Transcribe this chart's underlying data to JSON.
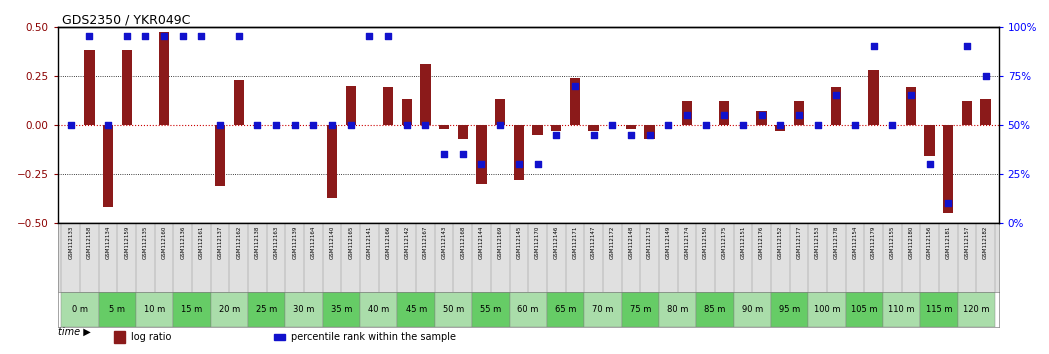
{
  "title": "GDS2350 / YKR049C",
  "samples": [
    "GSM112133",
    "GSM112158",
    "GSM112134",
    "GSM112159",
    "GSM112135",
    "GSM112160",
    "GSM112136",
    "GSM112161",
    "GSM112137",
    "GSM112162",
    "GSM112138",
    "GSM112163",
    "GSM112139",
    "GSM112164",
    "GSM112140",
    "GSM112165",
    "GSM112141",
    "GSM112166",
    "GSM112142",
    "GSM112167",
    "GSM112143",
    "GSM112168",
    "GSM112144",
    "GSM112169",
    "GSM112145",
    "GSM112170",
    "GSM112146",
    "GSM112171",
    "GSM112147",
    "GSM112172",
    "GSM112148",
    "GSM112173",
    "GSM112149",
    "GSM112174",
    "GSM112150",
    "GSM112175",
    "GSM112151",
    "GSM112176",
    "GSM112152",
    "GSM112177",
    "GSM112153",
    "GSM112178",
    "GSM112154",
    "GSM112179",
    "GSM112155",
    "GSM112180",
    "GSM112156",
    "GSM112181",
    "GSM112157",
    "GSM112182"
  ],
  "log_ratio": [
    0.0,
    0.38,
    -0.42,
    0.38,
    0.0,
    0.47,
    0.0,
    0.0,
    -0.31,
    0.23,
    0.0,
    0.0,
    0.0,
    0.0,
    -0.37,
    0.2,
    0.0,
    0.19,
    0.13,
    0.31,
    -0.02,
    -0.07,
    -0.3,
    0.13,
    -0.28,
    -0.05,
    -0.03,
    0.24,
    -0.03,
    0.0,
    -0.02,
    -0.07,
    0.0,
    0.12,
    0.0,
    0.12,
    0.0,
    0.07,
    -0.03,
    0.12,
    0.0,
    0.19,
    0.0,
    0.28,
    0.0,
    0.19,
    -0.16,
    -0.45,
    0.12,
    0.13
  ],
  "percentile": [
    50,
    95,
    50,
    95,
    95,
    95,
    95,
    95,
    50,
    95,
    50,
    50,
    50,
    50,
    50,
    50,
    95,
    95,
    50,
    50,
    35,
    35,
    30,
    50,
    30,
    30,
    45,
    70,
    45,
    50,
    45,
    45,
    50,
    55,
    50,
    55,
    50,
    55,
    50,
    55,
    50,
    65,
    50,
    90,
    50,
    65,
    30,
    10,
    90,
    75
  ],
  "time_labels": [
    "0 m",
    "5 m",
    "10 m",
    "15 m",
    "20 m",
    "25 m",
    "30 m",
    "35 m",
    "40 m",
    "45 m",
    "50 m",
    "55 m",
    "60 m",
    "65 m",
    "70 m",
    "75 m",
    "80 m",
    "85 m",
    "90 m",
    "95 m",
    "100 m",
    "105 m",
    "110 m",
    "115 m",
    "120 m"
  ],
  "time_positions": [
    0,
    2,
    4,
    6,
    8,
    10,
    12,
    14,
    16,
    18,
    20,
    22,
    24,
    26,
    28,
    30,
    32,
    34,
    36,
    38,
    40,
    42,
    44,
    46,
    48
  ],
  "bar_color": "#8B1A1A",
  "dot_color": "#1111CC",
  "ylim": [
    -0.5,
    0.5
  ],
  "y2lim": [
    0,
    100
  ],
  "yticks": [
    -0.5,
    -0.25,
    0.0,
    0.25,
    0.5
  ],
  "y2ticks": [
    0,
    25,
    50,
    75,
    100
  ],
  "time_color_even": "#aaddaa",
  "time_color_odd": "#66cc66",
  "sample_box_color": "#e0e0e0"
}
